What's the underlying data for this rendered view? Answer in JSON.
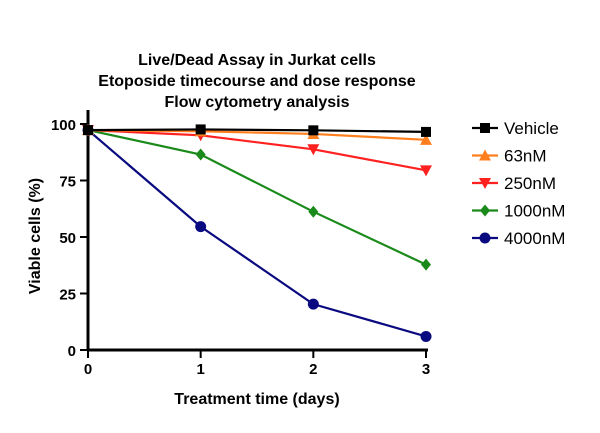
{
  "chart_data": {
    "type": "line",
    "title": [
      "Live/Dead Assay in Jurkat cells",
      "Etoposide timecourse and dose response",
      "Flow cytometry analysis"
    ],
    "xlabel": "Treatment time (days)",
    "ylabel": "Viable cells (%)",
    "x": [
      0,
      1,
      2,
      3
    ],
    "xlim": [
      0,
      3
    ],
    "ylim": [
      0,
      100
    ],
    "xticks": [
      "0",
      "1",
      "2",
      "3"
    ],
    "yticks": [
      "0",
      "25",
      "50",
      "75",
      "100"
    ],
    "grid": false,
    "legend_position": "right",
    "series": [
      {
        "name": "Vehicle",
        "color": "#000000",
        "marker": "square",
        "values": [
          97.3,
          97.6,
          97.2,
          96.5
        ]
      },
      {
        "name": "63nM",
        "color": "#ff7f1e",
        "marker": "triangle-up",
        "values": [
          97.3,
          96.8,
          95.6,
          93.0
        ]
      },
      {
        "name": "250nM",
        "color": "#ff2020",
        "marker": "triangle-down",
        "values": [
          97.3,
          95.0,
          88.8,
          79.5
        ]
      },
      {
        "name": "1000nM",
        "color": "#1a8a1a",
        "marker": "diamond",
        "values": [
          97.3,
          86.5,
          61.2,
          37.8
        ]
      },
      {
        "name": "4000nM",
        "color": "#0a0a80",
        "marker": "circle",
        "values": [
          97.3,
          54.6,
          20.3,
          6.0
        ]
      }
    ]
  }
}
